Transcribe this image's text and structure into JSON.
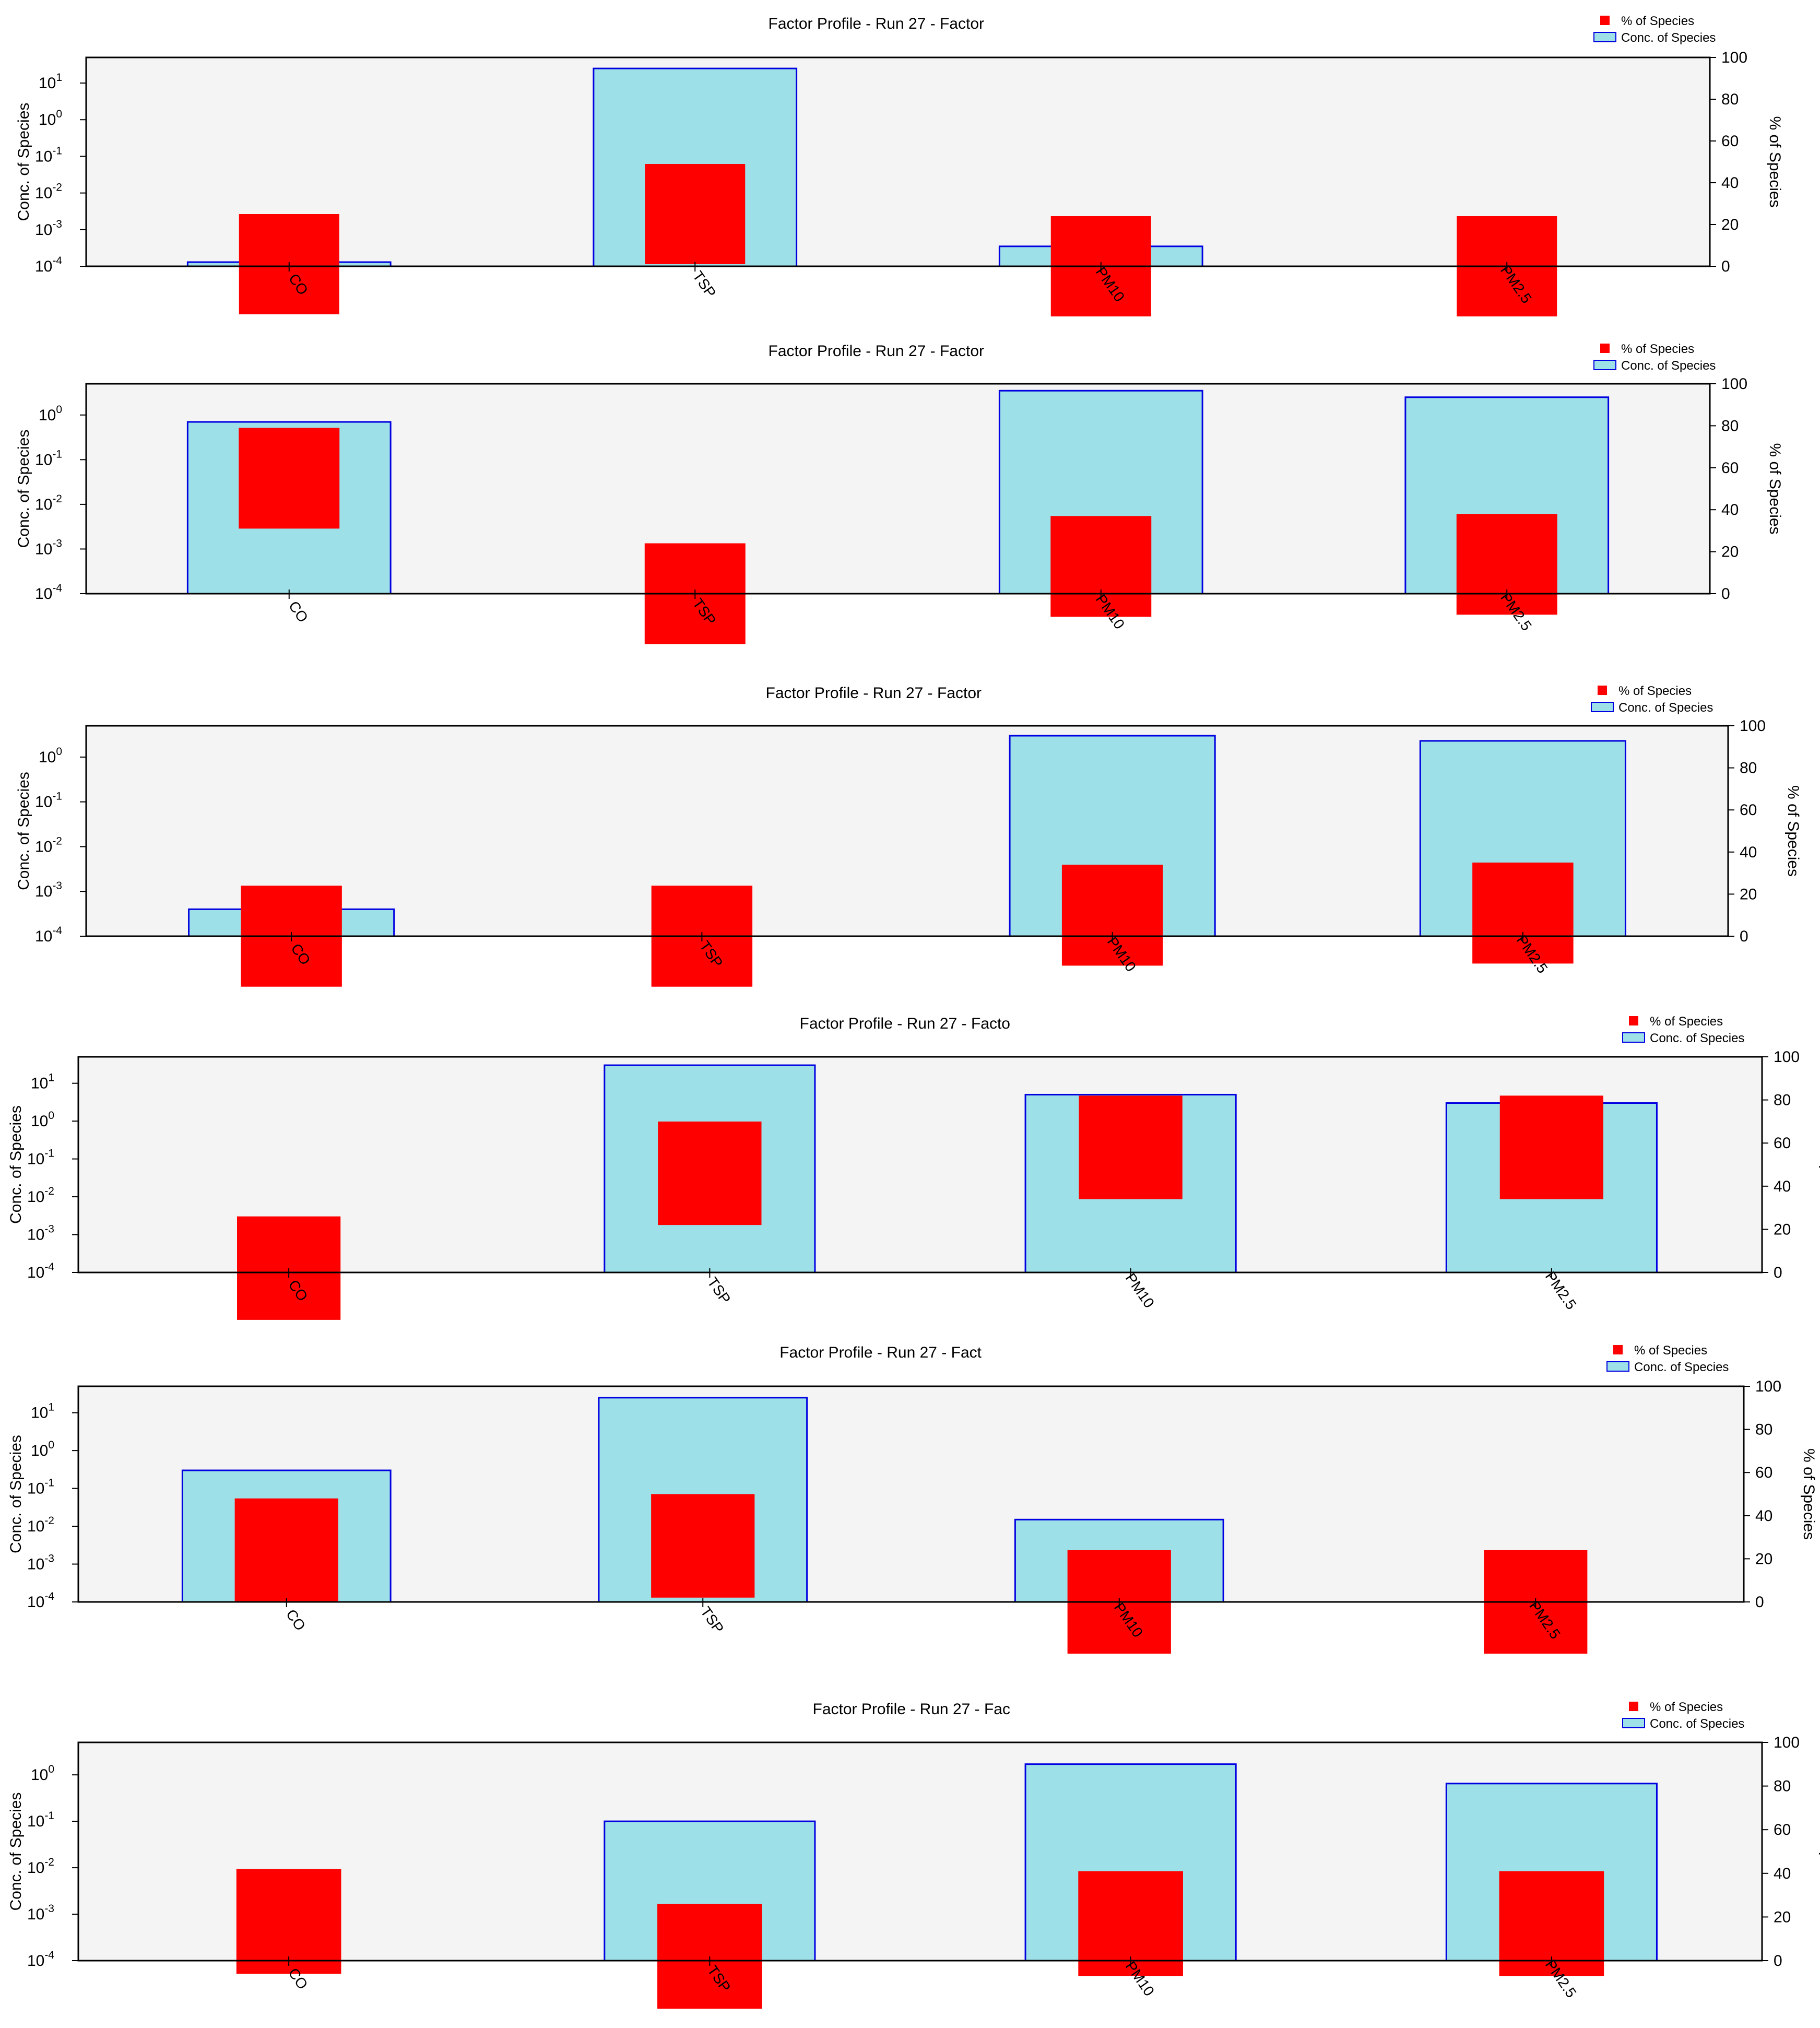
{
  "colors": {
    "conc_fill": "#9ee0e8",
    "conc_stroke": "#0000e0",
    "pct_fill": "#ff0000",
    "plot_bg": "#f4f4f4"
  },
  "legend": {
    "pct_label": "% of Species",
    "conc_label": "Conc. of Species"
  },
  "chart_data": [
    {
      "type": "bar",
      "title": "Factor Profile - Run 27 - Factor",
      "ylabel": "Conc. of Species",
      "y2label": "% of Species",
      "yscale": "log",
      "ylim": [
        0.0001,
        50
      ],
      "y2lim": [
        0,
        100
      ],
      "yticks": [
        "10^-4",
        "10^-3",
        "10^-2",
        "10^-1",
        "10^0",
        "10^1"
      ],
      "y2ticks": [
        0,
        20,
        40,
        60,
        80,
        100
      ],
      "categories": [
        "CO",
        "TSP",
        "PM10",
        "PM2.5"
      ],
      "series": [
        {
          "name": "Conc. of Species",
          "axis": "left",
          "values": [
            0.00013,
            25,
            0.00035,
            0.0001
          ]
        },
        {
          "name": "% of Species",
          "axis": "right",
          "values": [
            25,
            49,
            24,
            24
          ]
        }
      ]
    },
    {
      "type": "bar",
      "title": "Factor Profile - Run 27 - Factor",
      "ylabel": "Conc. of Species",
      "y2label": "% of Species",
      "yscale": "log",
      "ylim": [
        0.0001,
        5
      ],
      "y2lim": [
        0,
        100
      ],
      "yticks": [
        "10^-4",
        "10^-3",
        "10^-2",
        "10^-1",
        "10^0"
      ],
      "y2ticks": [
        0,
        20,
        40,
        60,
        80,
        100
      ],
      "categories": [
        "CO",
        "TSP",
        "PM10",
        "PM2.5"
      ],
      "series": [
        {
          "name": "Conc. of Species",
          "axis": "left",
          "values": [
            0.7,
            0.0001,
            3.5,
            2.5
          ]
        },
        {
          "name": "% of Species",
          "axis": "right",
          "values": [
            79,
            24,
            37,
            38
          ]
        }
      ]
    },
    {
      "type": "bar",
      "title": "Factor Profile - Run 27 - Factor",
      "ylabel": "Conc. of Species",
      "y2label": "% of Species",
      "yscale": "log",
      "ylim": [
        0.0001,
        5
      ],
      "y2lim": [
        0,
        100
      ],
      "yticks": [
        "10^-4",
        "10^-3",
        "10^-2",
        "10^-1",
        "10^0"
      ],
      "y2ticks": [
        0,
        20,
        40,
        60,
        80,
        100
      ],
      "categories": [
        "CO",
        "TSP",
        "PM10",
        "PM2.5"
      ],
      "series": [
        {
          "name": "Conc. of Species",
          "axis": "left",
          "values": [
            0.0004,
            0.0001,
            3.0,
            2.3
          ]
        },
        {
          "name": "% of Species",
          "axis": "right",
          "values": [
            24,
            24,
            34,
            35
          ]
        }
      ]
    },
    {
      "type": "bar",
      "title": "Factor Profile - Run 27 - Facto",
      "ylabel": "Conc. of Species",
      "y2label": "% of Species",
      "yscale": "log",
      "ylim": [
        0.0001,
        50
      ],
      "y2lim": [
        0,
        100
      ],
      "yticks": [
        "10^-4",
        "10^-3",
        "10^-2",
        "10^-1",
        "10^0",
        "10^1"
      ],
      "y2ticks": [
        0,
        20,
        40,
        60,
        80,
        100
      ],
      "categories": [
        "CO",
        "TSP",
        "PM10",
        "PM2.5"
      ],
      "series": [
        {
          "name": "Conc. of Species",
          "axis": "left",
          "values": [
            0.0001,
            30,
            5,
            3
          ]
        },
        {
          "name": "% of Species",
          "axis": "right",
          "values": [
            26,
            70,
            82,
            82
          ]
        }
      ]
    },
    {
      "type": "bar",
      "title": "Factor Profile - Run 27 - Fact",
      "ylabel": "Conc. of Species",
      "y2label": "% of Species",
      "yscale": "log",
      "ylim": [
        0.0001,
        50
      ],
      "y2lim": [
        0,
        100
      ],
      "yticks": [
        "10^-4",
        "10^-3",
        "10^-2",
        "10^-1",
        "10^0",
        "10^1"
      ],
      "y2ticks": [
        0,
        20,
        40,
        60,
        80,
        100
      ],
      "categories": [
        "CO",
        "TSP",
        "PM10",
        "PM2.5"
      ],
      "series": [
        {
          "name": "Conc. of Species",
          "axis": "left",
          "values": [
            0.3,
            25,
            0.015,
            0.0001
          ]
        },
        {
          "name": "% of Species",
          "axis": "right",
          "values": [
            48,
            50,
            24,
            24
          ]
        }
      ]
    },
    {
      "type": "bar",
      "title": "Factor Profile - Run 27 - Fac",
      "ylabel": "Conc. of Species",
      "y2label": "% of Species",
      "yscale": "log",
      "ylim": [
        0.0001,
        5
      ],
      "y2lim": [
        0,
        100
      ],
      "yticks": [
        "10^-4",
        "10^-3",
        "10^-2",
        "10^-1",
        "10^0"
      ],
      "y2ticks": [
        0,
        20,
        40,
        60,
        80,
        100
      ],
      "categories": [
        "CO",
        "TSP",
        "PM10",
        "PM2.5"
      ],
      "series": [
        {
          "name": "Conc. of Species",
          "axis": "left",
          "values": [
            0.0001,
            0.1,
            1.7,
            0.65
          ]
        },
        {
          "name": "% of Species",
          "axis": "right",
          "values": [
            42,
            26,
            41,
            41
          ]
        }
      ]
    }
  ]
}
